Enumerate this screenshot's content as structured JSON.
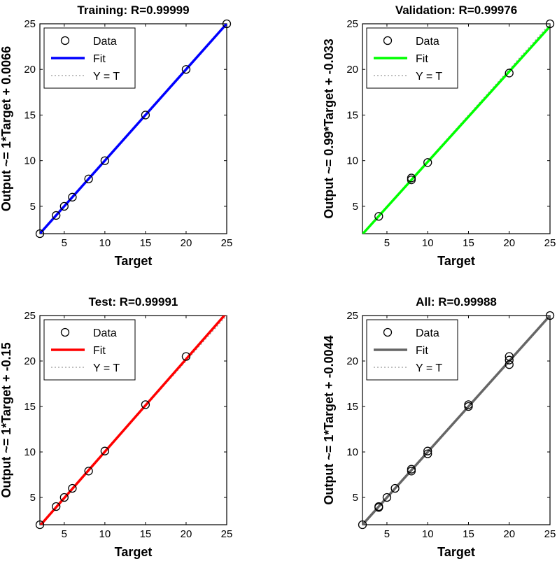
{
  "colors": {
    "training": "#0000ff",
    "validation": "#00ff00",
    "test": "#ff0000",
    "all": "#666666",
    "data_marker": "#000000",
    "identity_line": "#999999"
  },
  "chart_data": [
    {
      "type": "scatter",
      "panel": "training",
      "title": "Training: R=0.99999",
      "xlabel": "Target",
      "ylabel": "Output ~= 1*Target + 0.0066",
      "xlim": [
        2,
        25
      ],
      "ylim": [
        2,
        25
      ],
      "xticks": [
        5,
        10,
        15,
        20,
        25
      ],
      "yticks": [
        5,
        10,
        15,
        20,
        25
      ],
      "grid": false,
      "legend_position": "top-left",
      "legend": [
        "Data",
        "Fit",
        "Y = T"
      ],
      "fit": {
        "slope": 1,
        "intercept": 0.0066
      },
      "points": [
        [
          2,
          2
        ],
        [
          4,
          4
        ],
        [
          5,
          5
        ],
        [
          6,
          6
        ],
        [
          8,
          8
        ],
        [
          10,
          10
        ],
        [
          15,
          15
        ],
        [
          20,
          20
        ],
        [
          25,
          25
        ]
      ]
    },
    {
      "type": "scatter",
      "panel": "validation",
      "title": "Validation: R=0.99976",
      "xlabel": "Target",
      "ylabel": "Output ~= 0.99*Target + -0.033",
      "xlim": [
        2,
        25
      ],
      "ylim": [
        2,
        25
      ],
      "xticks": [
        5,
        10,
        15,
        20,
        25
      ],
      "yticks": [
        5,
        10,
        15,
        20,
        25
      ],
      "grid": false,
      "legend_position": "top-left",
      "legend": [
        "Data",
        "Fit",
        "Y = T"
      ],
      "fit": {
        "slope": 0.99,
        "intercept": -0.033
      },
      "points": [
        [
          4,
          3.9
        ],
        [
          8,
          7.9
        ],
        [
          8,
          8.1
        ],
        [
          10,
          9.8
        ],
        [
          20,
          19.6
        ],
        [
          25,
          25
        ]
      ]
    },
    {
      "type": "scatter",
      "panel": "test",
      "title": "Test: R=0.99991",
      "xlabel": "Target",
      "ylabel": "Output ~= 1*Target + -0.15",
      "xlim": [
        2,
        25
      ],
      "ylim": [
        2,
        25
      ],
      "xticks": [
        5,
        10,
        15,
        20,
        25
      ],
      "yticks": [
        5,
        10,
        15,
        20,
        25
      ],
      "grid": false,
      "legend_position": "top-left",
      "legend": [
        "Data",
        "Fit",
        "Y = T"
      ],
      "fit": {
        "slope": 1.018,
        "intercept": -0.15
      },
      "points": [
        [
          2,
          2
        ],
        [
          4,
          4
        ],
        [
          5,
          5
        ],
        [
          6,
          6
        ],
        [
          8,
          7.9
        ],
        [
          10,
          10.1
        ],
        [
          15,
          15.2
        ],
        [
          20,
          20.5
        ]
      ]
    },
    {
      "type": "scatter",
      "panel": "all",
      "title": "All: R=0.99988",
      "xlabel": "Target",
      "ylabel": "Output ~= 1*Target + -0.0044",
      "xlim": [
        2,
        25
      ],
      "ylim": [
        2,
        25
      ],
      "xticks": [
        5,
        10,
        15,
        20,
        25
      ],
      "yticks": [
        5,
        10,
        15,
        20,
        25
      ],
      "grid": false,
      "legend_position": "top-left",
      "legend": [
        "Data",
        "Fit",
        "Y = T"
      ],
      "fit": {
        "slope": 1,
        "intercept": -0.0044
      },
      "points": [
        [
          2,
          2
        ],
        [
          4,
          3.9
        ],
        [
          4,
          4
        ],
        [
          5,
          5
        ],
        [
          6,
          6
        ],
        [
          8,
          7.9
        ],
        [
          8,
          8.1
        ],
        [
          10,
          9.8
        ],
        [
          10,
          10.1
        ],
        [
          15,
          15
        ],
        [
          15,
          15.2
        ],
        [
          20,
          19.6
        ],
        [
          20,
          20.1
        ],
        [
          20,
          20.5
        ],
        [
          25,
          25
        ]
      ]
    }
  ]
}
